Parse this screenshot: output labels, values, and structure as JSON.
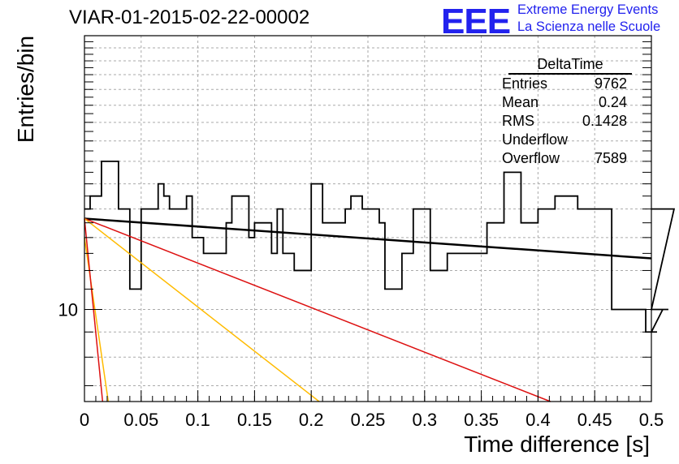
{
  "header": {
    "title": "VIAR-01-2015-02-22-00002",
    "logo_text": "EEE",
    "logo_line1": "Extreme Energy Events",
    "logo_line2": "La Scienza nelle Scuole",
    "logo_color": "#2222ee"
  },
  "stats": {
    "title": "DeltaTime",
    "rows": [
      {
        "label": "Entries",
        "value": "9762"
      },
      {
        "label": "Mean",
        "value": "0.24"
      },
      {
        "label": "RMS",
        "value": "0.1428"
      },
      {
        "label": "Underflow",
        "value": ""
      },
      {
        "label": "Overflow",
        "value": "7589"
      }
    ]
  },
  "chart_data": {
    "type": "line",
    "xlabel": "Time difference [s]",
    "ylabel": "Entries/bin",
    "xlim": [
      0,
      0.5
    ],
    "ylim": [
      6.5,
      36
    ],
    "yscale": "log",
    "grid": true,
    "x_ticks": [
      "0",
      "0.05",
      "0.1",
      "0.15",
      "0.2",
      "0.25",
      "0.3",
      "0.35",
      "0.4",
      "0.45",
      "0.5"
    ],
    "y_ticks": [
      "10"
    ],
    "histogram": {
      "name": "DeltaTime",
      "bin_width": 0.005,
      "color": "#000000",
      "values": [
        16,
        17,
        17,
        20,
        20,
        20,
        16,
        16,
        11,
        11,
        16,
        16,
        16,
        18,
        17,
        16,
        16,
        16,
        17,
        14,
        14,
        13,
        13,
        13,
        13,
        15,
        17,
        17,
        17,
        14,
        15,
        15,
        15,
        13,
        16,
        13,
        13,
        12,
        12,
        12,
        18,
        18,
        15,
        15,
        15,
        15,
        16,
        17,
        17,
        16,
        16,
        16,
        15,
        11,
        11,
        11,
        13,
        13,
        16,
        16,
        16,
        12,
        12,
        12,
        13,
        13,
        13,
        13,
        13,
        13,
        13,
        15,
        15,
        15,
        19,
        19,
        19,
        15,
        15,
        15,
        16,
        16,
        16,
        17,
        17,
        17,
        17,
        16,
        16,
        16,
        16,
        16,
        16,
        10,
        10,
        10,
        10,
        10,
        10,
        9,
        9,
        9,
        10,
        10,
        16
      ]
    },
    "fit_lines": [
      {
        "color": "#000000",
        "width": 2.5,
        "x": [
          0,
          0.5
        ],
        "y": [
          15.3,
          12.7
        ]
      },
      {
        "color": "#dd1111",
        "width": 1.5,
        "x": [
          0,
          0.411
        ],
        "y": [
          15.3,
          6.5
        ]
      },
      {
        "color": "#ffbb00",
        "width": 1.5,
        "x": [
          0,
          0.207
        ],
        "y": [
          15.3,
          6.5
        ]
      },
      {
        "color": "#ffbb00",
        "width": 1.5,
        "x": [
          0,
          0.021
        ],
        "y": [
          14.0,
          6.5
        ]
      },
      {
        "color": "#dd1111",
        "width": 1.5,
        "x": [
          0,
          0.016
        ],
        "y": [
          15.3,
          6.5
        ]
      }
    ]
  }
}
